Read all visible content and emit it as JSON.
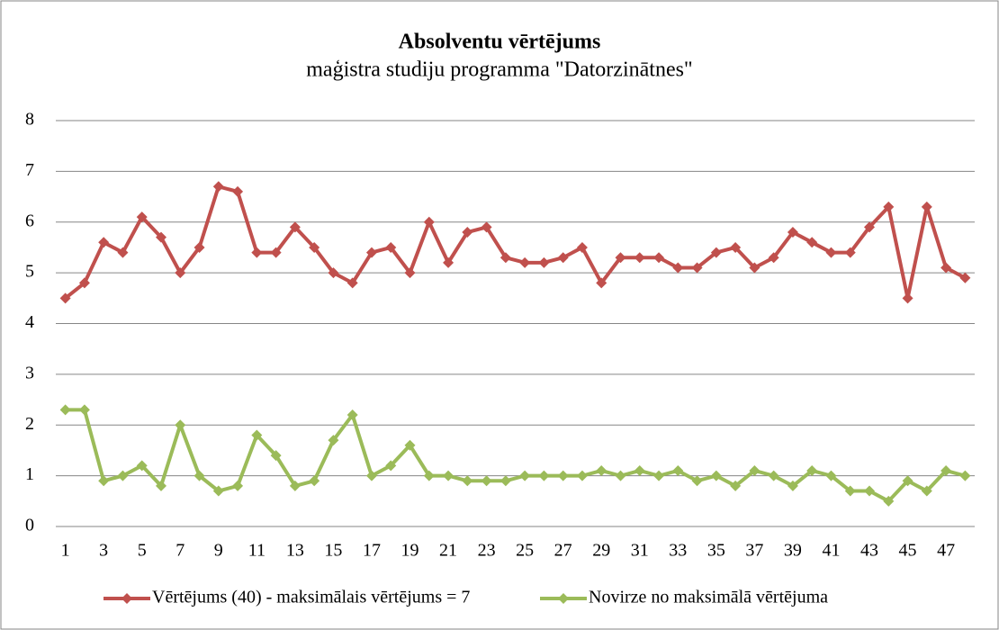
{
  "chart_data": {
    "type": "line",
    "title": "Absolventu vērtējums",
    "subtitle": "maģistra studiju programma \"Datorzinātnes\"",
    "categories": [
      1,
      null,
      3,
      null,
      5,
      null,
      7,
      null,
      9,
      null,
      11,
      null,
      13,
      null,
      15,
      null,
      17,
      null,
      19,
      null,
      21,
      null,
      23,
      null,
      25,
      null,
      27,
      null,
      29,
      null,
      31,
      null,
      33,
      null,
      35,
      null,
      37,
      null,
      39,
      null,
      41,
      null,
      43,
      null,
      45,
      null,
      47,
      null
    ],
    "series": [
      {
        "name": "Vērtējums (40) - maksimālais vērtējums = 7",
        "color": "#c0504d",
        "values": [
          4.5,
          4.8,
          5.6,
          5.4,
          6.1,
          5.7,
          5.0,
          5.5,
          6.7,
          6.6,
          5.4,
          5.4,
          5.9,
          5.5,
          5.0,
          4.8,
          5.4,
          5.5,
          5.0,
          6.0,
          5.2,
          5.8,
          5.9,
          5.3,
          5.2,
          5.2,
          5.3,
          5.5,
          4.8,
          5.3,
          5.3,
          5.3,
          5.1,
          5.1,
          5.4,
          5.5,
          5.1,
          5.3,
          5.8,
          5.6,
          5.4,
          5.4,
          5.9,
          6.3,
          4.5,
          6.3,
          5.1,
          4.9
        ]
      },
      {
        "name": "Novirze no maksimālā vērtējuma",
        "color": "#9bbb59",
        "values": [
          2.3,
          2.3,
          0.9,
          1.0,
          1.2,
          0.8,
          2.0,
          1.0,
          0.7,
          0.8,
          1.8,
          1.4,
          0.8,
          0.9,
          1.7,
          2.2,
          1.0,
          1.2,
          1.6,
          1.0,
          1.0,
          0.9,
          0.9,
          0.9,
          1.0,
          1.0,
          1.0,
          1.0,
          1.1,
          1.0,
          1.1,
          1.0,
          1.1,
          0.9,
          1.0,
          0.8,
          1.1,
          1.0,
          0.8,
          1.1,
          1.0,
          0.7,
          0.7,
          0.5,
          0.9,
          0.7,
          1.1,
          1.0
        ]
      }
    ],
    "ylim": [
      0,
      8
    ],
    "yticks": [
      0,
      1,
      2,
      3,
      4,
      5,
      6,
      7,
      8
    ],
    "grid": true,
    "legend": "bottom"
  }
}
